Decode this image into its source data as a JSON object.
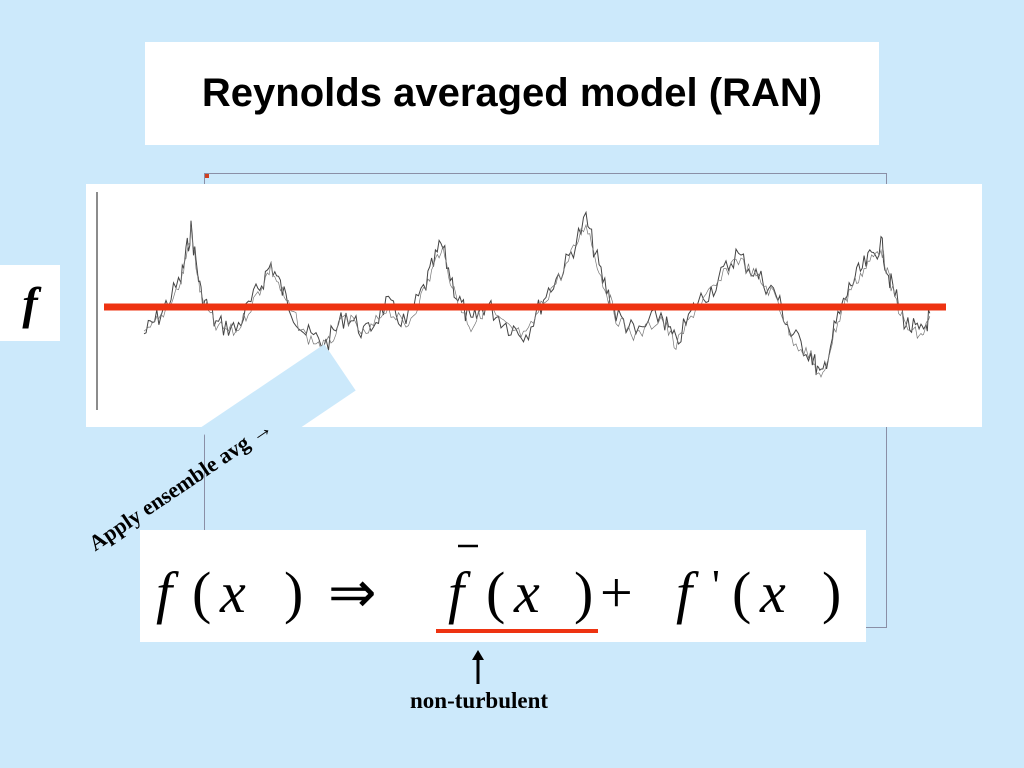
{
  "slide": {
    "title": "Reynolds averaged model (RAN)",
    "side_symbol": "f",
    "ensemble_label": "Apply ensemble avg →",
    "equation": {
      "lhs_fn": "f",
      "lhs_open": "(",
      "lhs_var": "x",
      "lhs_close": ")",
      "implies": "⇒",
      "mean_fn": "f",
      "mean_open": "(",
      "mean_var": "x",
      "mean_close": ")",
      "plus": "+",
      "fluct_fn": "f",
      "fluct_prime": "'",
      "fluct_open": "(",
      "fluct_var": "x",
      "fluct_close": ")"
    },
    "annotation": "non-turbulent"
  },
  "colors": {
    "background": "#cce9fb",
    "mean_line": "#ee3311",
    "signal": "#444444"
  }
}
